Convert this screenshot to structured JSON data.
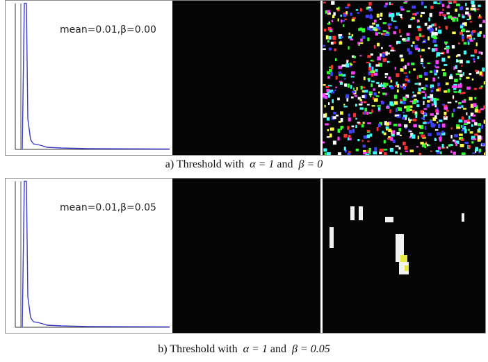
{
  "figure": {
    "rows": [
      {
        "annotation": "mean=0.01,β=0.00",
        "caption": {
          "label": "a) Threshold with",
          "alpha": "α = 1",
          "and": "and",
          "beta": "β = 0"
        }
      },
      {
        "annotation": "mean=0.01,β=0.05",
        "caption": {
          "label": "b) Threshold with",
          "alpha": "α = 1",
          "and": "and",
          "beta": "β = 0.05"
        }
      }
    ]
  }
}
